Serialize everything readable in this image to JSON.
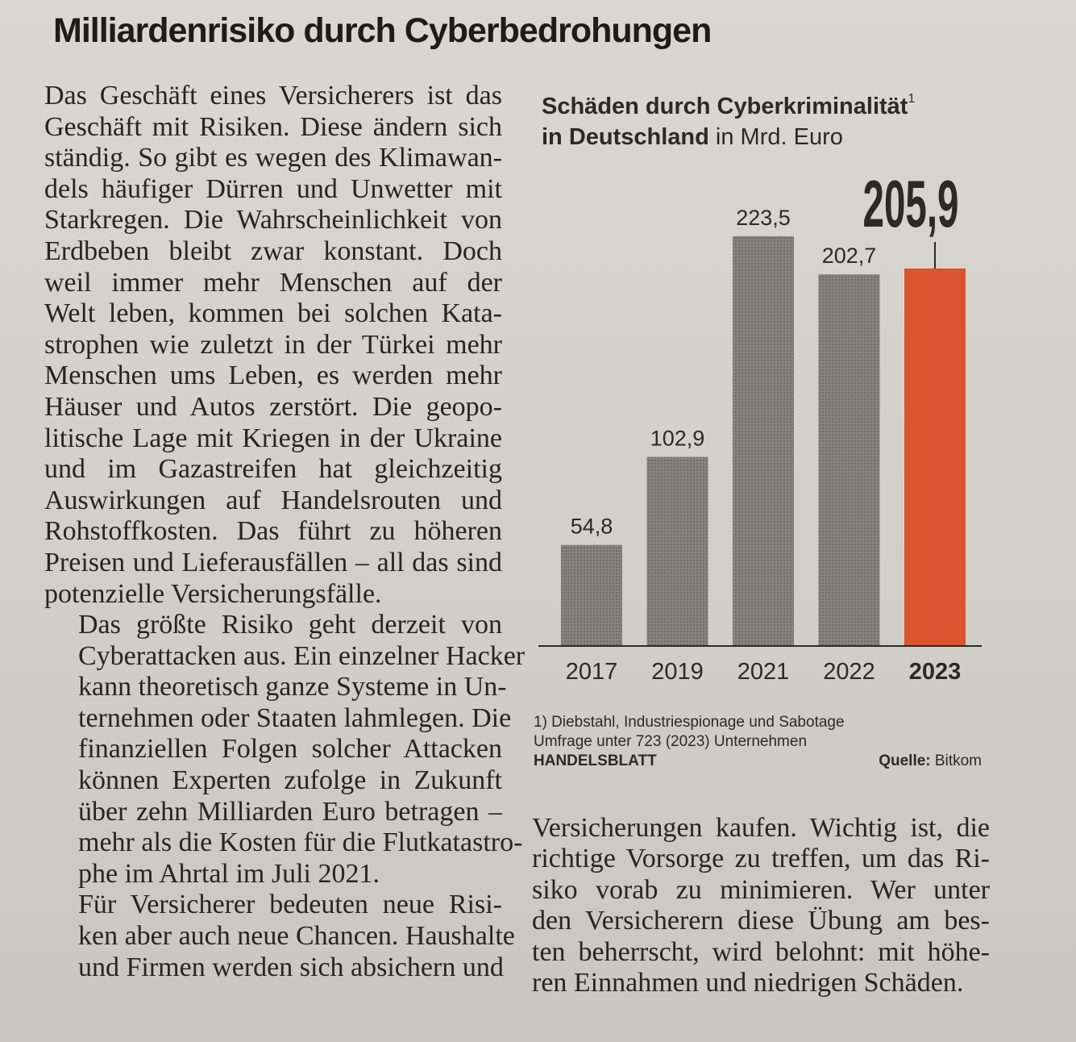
{
  "article": {
    "headline": "Milliardenrisiko durch Cyberbedrohungen",
    "left_column": [
      {
        "indent": false,
        "lines": [
          "Das Geschäft eines Versicherers ist das",
          "Geschäft mit Risiken. Diese ändern sich",
          "ständig. So gibt es wegen des Klimawan-",
          "dels häufiger Dürren und Unwetter mit",
          "Starkregen. Die Wahrscheinlichkeit von",
          "Erdbeben bleibt zwar konstant. Doch",
          "weil immer mehr Menschen auf der",
          "Welt leben, kommen bei solchen Kata-",
          "strophen wie zuletzt in der Türkei mehr",
          "Menschen ums Leben, es werden mehr",
          "Häuser und Autos zerstört. Die geopo-",
          "litische Lage mit Kriegen in der Ukraine",
          "und im Gazastreifen hat gleichzeitig",
          "Auswirkungen auf Handelsrouten und",
          "Rohstoffkosten. Das führt zu höheren",
          "Preisen und Lieferausfällen – all das sind",
          "potenzielle Versicherungsfälle."
        ]
      },
      {
        "indent": true,
        "lines": [
          "Das größte Risiko geht derzeit von",
          "Cyberattacken aus. Ein einzelner Hacker",
          "kann theoretisch ganze Systeme in Un-",
          "ternehmen oder Staaten lahmlegen. Die",
          "finanziellen Folgen solcher Attacken",
          "können Experten zufolge in Zukunft",
          "über zehn Milliarden Euro betragen –",
          "mehr als die Kosten für die Flutkatastro-",
          "phe im Ahrtal im Juli 2021."
        ]
      },
      {
        "indent": true,
        "lines": [
          "Für Versicherer bedeuten neue Risi-",
          "ken aber auch neue Chancen. Haushalte",
          "und Firmen werden sich absichern und"
        ]
      }
    ],
    "right_column_bottom": [
      "Versicherungen kaufen. Wichtig ist, die",
      "richtige Vorsorge zu treffen, um das Ri-",
      "siko vorab zu minimieren. Wer unter",
      "den Versicherern diese Übung am bes-",
      "ten beherrscht, wird belohnt: mit höhe-",
      "ren Einnahmen und niedrigen Schäden."
    ]
  },
  "chart_header": {
    "title_bold": "Schäden durch Cyberkriminalität",
    "title_sup": "1",
    "title_line2_bold": "in Deutschland",
    "title_line2_unit": " in Mrd. Euro"
  },
  "footnotes": {
    "note1": "1) Diebstahl, Industriespionage und Sabotage",
    "note2": "Umfrage unter 723 (2023) Unternehmen",
    "brand": "HANDELSBLATT",
    "source_label": "Quelle:",
    "source_value": " Bitkom"
  },
  "chart_data": {
    "type": "bar",
    "title": "Schäden durch Cyberkriminalität in Deutschland",
    "unit": "in Mrd. Euro",
    "categories": [
      "2017",
      "2019",
      "2021",
      "2022",
      "2023"
    ],
    "values": [
      54.8,
      102.9,
      223.5,
      202.7,
      205.9
    ],
    "value_labels": [
      "54,8",
      "102,9",
      "223,5",
      "202,7",
      "205,9"
    ],
    "highlight_index": 4,
    "colors": {
      "default": "#7a7775",
      "highlight": "#d9542f",
      "axis": "#2a2a2a",
      "text": "#2a2a2a"
    },
    "ylim": [
      0,
      223.5
    ],
    "grid": false,
    "legend": "none"
  }
}
